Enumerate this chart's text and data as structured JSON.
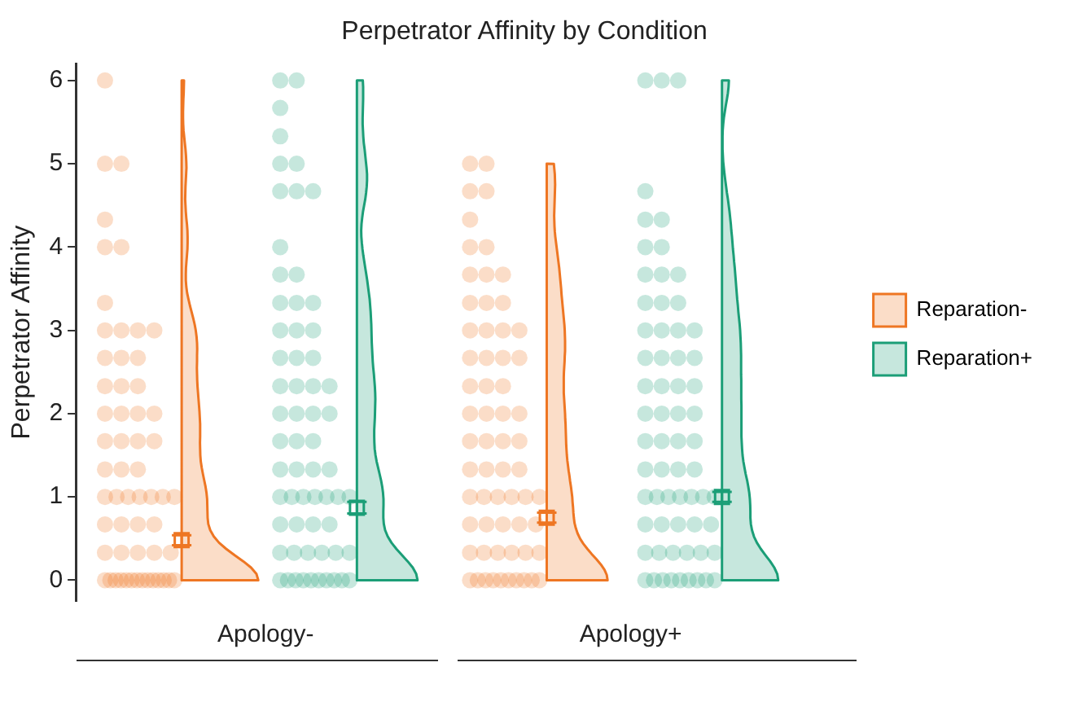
{
  "chart_data": {
    "type": "scatter",
    "title": "Perpetrator Affinity by Condition",
    "ylabel": "Perpetrator Affinity",
    "categories": [
      "Apology-",
      "Apology+"
    ],
    "ylim": [
      -0.25,
      6.2
    ],
    "yticks": [
      0,
      1,
      2,
      3,
      4,
      5,
      6
    ],
    "grid": false,
    "legend": "right",
    "series": [
      {
        "name": "Reparation-",
        "color": "#ee7623",
        "type": "scatter",
        "marker": "circle",
        "x": [
          "Apology-",
          "Apology-",
          "Apology-",
          "Apology-",
          "Apology-",
          "Apology-",
          "Apology-",
          "Apology-",
          "Apology-",
          "Apology-",
          "Apology-",
          "Apology-",
          "Apology-",
          "Apology-",
          "Apology-",
          "Apology-",
          "Apology-",
          "Apology-",
          "Apology-",
          "Apology-",
          "Apology-",
          "Apology-",
          "Apology-",
          "Apology-",
          "Apology-",
          "Apology-",
          "Apology-",
          "Apology-",
          "Apology-",
          "Apology-",
          "Apology-",
          "Apology-",
          "Apology-",
          "Apology-",
          "Apology-",
          "Apology-",
          "Apology-",
          "Apology-",
          "Apology-",
          "Apology-",
          "Apology-",
          "Apology-",
          "Apology-",
          "Apology-",
          "Apology-",
          "Apology-",
          "Apology-",
          "Apology-",
          "Apology-",
          "Apology-",
          "Apology-",
          "Apology-",
          "Apology-",
          "Apology-",
          "Apology-",
          "Apology-",
          "Apology-",
          "Apology-"
        ],
        "values": [
          0,
          0,
          0,
          0,
          0,
          0,
          0,
          0,
          0,
          0,
          0,
          0,
          0,
          0,
          0.33,
          0.33,
          0.33,
          0.33,
          0.33,
          0.67,
          0.67,
          0.67,
          0.67,
          1,
          1,
          1,
          1,
          1,
          1,
          1,
          1.33,
          1.33,
          1.33,
          1.67,
          1.67,
          1.67,
          1.67,
          2,
          2,
          2,
          2,
          2.33,
          2.33,
          2.33,
          2.67,
          2.67,
          2.67,
          3,
          3,
          3,
          3,
          3.33,
          4,
          4,
          4.33,
          5,
          5,
          6
        ]
      },
      {
        "name": "Reparation+",
        "color": "#1b9e77",
        "type": "scatter",
        "marker": "circle",
        "x": [
          "Apology-",
          "Apology-",
          "Apology-",
          "Apology-",
          "Apology-",
          "Apology-",
          "Apology-",
          "Apology-",
          "Apology-",
          "Apology-",
          "Apology-",
          "Apology-",
          "Apology-",
          "Apology-",
          "Apology-",
          "Apology-",
          "Apology-",
          "Apology-",
          "Apology-",
          "Apology-",
          "Apology-",
          "Apology-",
          "Apology-",
          "Apology-",
          "Apology-",
          "Apology-",
          "Apology-",
          "Apology-",
          "Apology-",
          "Apology-",
          "Apology-",
          "Apology-",
          "Apology-",
          "Apology-",
          "Apology-",
          "Apology-",
          "Apology-",
          "Apology-",
          "Apology-",
          "Apology-",
          "Apology-",
          "Apology-",
          "Apology-",
          "Apology-",
          "Apology-",
          "Apology-",
          "Apology-",
          "Apology-",
          "Apology-",
          "Apology-",
          "Apology-",
          "Apology-",
          "Apology-",
          "Apology-",
          "Apology-",
          "Apology-",
          "Apology-",
          "Apology-",
          "Apology-",
          "Apology-",
          "Apology-",
          "Apology-",
          "Apology-"
        ],
        "values": [
          0,
          0,
          0,
          0,
          0,
          0,
          0,
          0,
          0,
          0,
          0.33,
          0.33,
          0.33,
          0.33,
          0.33,
          0.33,
          0.67,
          0.67,
          0.67,
          0.67,
          1,
          1,
          1,
          1,
          1,
          1,
          1,
          1.33,
          1.33,
          1.33,
          1.33,
          1.67,
          1.67,
          1.67,
          2,
          2,
          2,
          2,
          2.33,
          2.33,
          2.33,
          2.33,
          2.67,
          2.67,
          2.67,
          3,
          3,
          3,
          3.33,
          3.33,
          3.33,
          3.67,
          3.67,
          4,
          4.67,
          4.67,
          4.67,
          5,
          5,
          5.33,
          5.67,
          6,
          6
        ]
      },
      {
        "color": "#ee7623",
        "type": "scatter",
        "marker": "circle",
        "x": [
          "Apology+",
          "Apology+",
          "Apology+",
          "Apology+",
          "Apology+",
          "Apology+",
          "Apology+",
          "Apology+",
          "Apology+",
          "Apology+",
          "Apology+",
          "Apology+",
          "Apology+",
          "Apology+",
          "Apology+",
          "Apology+",
          "Apology+",
          "Apology+",
          "Apology+",
          "Apology+",
          "Apology+",
          "Apology+",
          "Apology+",
          "Apology+",
          "Apology+",
          "Apology+",
          "Apology+",
          "Apology+",
          "Apology+",
          "Apology+",
          "Apology+",
          "Apology+",
          "Apology+",
          "Apology+",
          "Apology+",
          "Apology+",
          "Apology+",
          "Apology+",
          "Apology+",
          "Apology+",
          "Apology+",
          "Apology+",
          "Apology+",
          "Apology+",
          "Apology+",
          "Apology+",
          "Apology+",
          "Apology+",
          "Apology+",
          "Apology+",
          "Apology+",
          "Apology+",
          "Apology+",
          "Apology+",
          "Apology+",
          "Apology+",
          "Apology+",
          "Apology+",
          "Apology+",
          "Apology+",
          "Apology+",
          "Apology+",
          "Apology+"
        ],
        "values": [
          0,
          0,
          0,
          0,
          0,
          0,
          0,
          0,
          0,
          0,
          0.33,
          0.33,
          0.33,
          0.33,
          0.33,
          0.33,
          0.67,
          0.67,
          0.67,
          0.67,
          0.67,
          1,
          1,
          1,
          1,
          1,
          1,
          1.33,
          1.33,
          1.33,
          1.33,
          1.67,
          1.67,
          1.67,
          1.67,
          2,
          2,
          2,
          2,
          2.33,
          2.33,
          2.33,
          2.67,
          2.67,
          2.67,
          2.67,
          3,
          3,
          3,
          3,
          3.33,
          3.33,
          3.33,
          3.67,
          3.67,
          3.67,
          4,
          4,
          4.33,
          4.67,
          4.67,
          5,
          5
        ]
      },
      {
        "color": "#1b9e77",
        "type": "scatter",
        "marker": "circle",
        "x": [
          "Apology+",
          "Apology+",
          "Apology+",
          "Apology+",
          "Apology+",
          "Apology+",
          "Apology+",
          "Apology+",
          "Apology+",
          "Apology+",
          "Apology+",
          "Apology+",
          "Apology+",
          "Apology+",
          "Apology+",
          "Apology+",
          "Apology+",
          "Apology+",
          "Apology+",
          "Apology+",
          "Apology+",
          "Apology+",
          "Apology+",
          "Apology+",
          "Apology+",
          "Apology+",
          "Apology+",
          "Apology+",
          "Apology+",
          "Apology+",
          "Apology+",
          "Apology+",
          "Apology+",
          "Apology+",
          "Apology+",
          "Apology+",
          "Apology+",
          "Apology+",
          "Apology+",
          "Apology+",
          "Apology+",
          "Apology+",
          "Apology+",
          "Apology+",
          "Apology+",
          "Apology+",
          "Apology+",
          "Apology+",
          "Apology+",
          "Apology+",
          "Apology+",
          "Apology+",
          "Apology+",
          "Apology+",
          "Apology+",
          "Apology+",
          "Apology+",
          "Apology+",
          "Apology+",
          "Apology+",
          "Apology+",
          "Apology+",
          "Apology+",
          "Apology+",
          "Apology+"
        ],
        "values": [
          0,
          0,
          0,
          0,
          0,
          0,
          0,
          0,
          0,
          0.33,
          0.33,
          0.33,
          0.33,
          0.33,
          0.33,
          0.67,
          0.67,
          0.67,
          0.67,
          0.67,
          1,
          1,
          1,
          1,
          1,
          1,
          1,
          1.33,
          1.33,
          1.33,
          1.33,
          1.67,
          1.67,
          1.67,
          1.67,
          2,
          2,
          2,
          2,
          2.33,
          2.33,
          2.33,
          2.33,
          2.67,
          2.67,
          2.67,
          2.67,
          3,
          3,
          3,
          3,
          3.33,
          3.33,
          3.33,
          3.67,
          3.67,
          3.67,
          4,
          4,
          4.33,
          4.33,
          4.67,
          6,
          6,
          6
        ]
      },
      {
        "color": "#ee7623",
        "type": "scatter",
        "marker": "square",
        "x": [
          "Apology-",
          "Apology+"
        ],
        "values": [
          0.48,
          0.75
        ],
        "errors": [
          0.06,
          0.06
        ]
      },
      {
        "color": "#1b9e77",
        "type": "scatter",
        "marker": "square",
        "x": [
          "Apology-",
          "Apology+"
        ],
        "values": [
          0.87,
          1.0
        ],
        "errors": [
          0.07,
          0.06
        ]
      }
    ]
  }
}
